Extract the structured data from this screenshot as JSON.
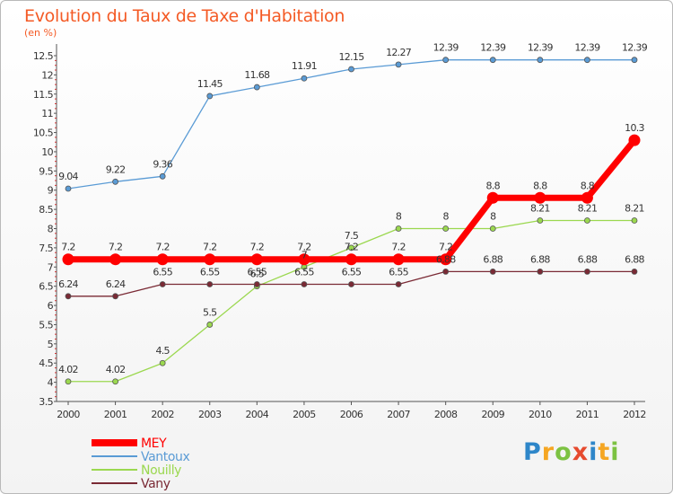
{
  "header": {
    "title": "Evolution du Taux de Taxe d'Habitation",
    "subtitle": "(en %)"
  },
  "logo": {
    "text": "Proxiti",
    "letters": [
      {
        "ch": "P",
        "color": "#2e86c9"
      },
      {
        "ch": "r",
        "color": "#f5a623"
      },
      {
        "ch": "o",
        "color": "#7cc242"
      },
      {
        "ch": "x",
        "color": "#e64a2e"
      },
      {
        "ch": "i",
        "color": "#2e86c9"
      },
      {
        "ch": "t",
        "color": "#f5a623"
      },
      {
        "ch": "i",
        "color": "#7cc242"
      }
    ]
  },
  "chart_data": {
    "type": "line",
    "x": [
      "2000",
      "2001",
      "2002",
      "2003",
      "2004",
      "2005",
      "2006",
      "2007",
      "2008",
      "2009",
      "2010",
      "2011",
      "2012"
    ],
    "ylim": [
      3.5,
      12.5
    ],
    "yticks": [
      "3.5",
      "4",
      "4.5",
      "5",
      "5.5",
      "6",
      "6.5",
      "7",
      "7.5",
      "8",
      "8.5",
      "9",
      "9.5",
      "10",
      "10.5",
      "11",
      "11.5",
      "12",
      "12.5"
    ],
    "grid": false,
    "legend_position": "bottom-left",
    "series": [
      {
        "name": "MEY",
        "color": "#ff0000",
        "values": [
          7.2,
          7.2,
          7.2,
          7.2,
          7.2,
          7.2,
          7.2,
          7.2,
          7.2,
          8.8,
          8.8,
          8.8,
          10.3
        ],
        "labels": [
          "7.2",
          "7.2",
          "7.2",
          "7.2",
          "7.2",
          "7.2",
          "7.2",
          "7.2",
          "7.2",
          "8.8",
          "8.8",
          "8.8",
          "10.3"
        ]
      },
      {
        "name": "Vantoux",
        "color": "#5a9bd5",
        "values": [
          9.04,
          9.22,
          9.36,
          11.45,
          11.68,
          11.91,
          12.15,
          12.27,
          12.39,
          12.39,
          12.39,
          12.39,
          12.39
        ],
        "labels": [
          "9.04",
          "9.22",
          "9.36",
          "11.45",
          "11.68",
          "11.91",
          "12.15",
          "12.27",
          "12.39",
          "12.39",
          "12.39",
          "12.39",
          "12.39"
        ]
      },
      {
        "name": "Nouilly",
        "color": "#9bd84f",
        "values": [
          4.02,
          4.02,
          4.5,
          5.5,
          6.5,
          7,
          7.5,
          8,
          8,
          8,
          8.21,
          8.21,
          8.21
        ],
        "labels": [
          "4.02",
          "4.02",
          "4.5",
          "5.5",
          "6.5",
          "7",
          "7.5",
          "8",
          "8",
          "8",
          "8.21",
          "8.21",
          "8.21"
        ]
      },
      {
        "name": "Vany",
        "color": "#7a2a35",
        "values": [
          6.24,
          6.24,
          6.55,
          6.55,
          6.55,
          6.55,
          6.55,
          6.55,
          6.88,
          6.88,
          6.88,
          6.88,
          6.88
        ],
        "labels": [
          "6.24",
          "6.24",
          "6.55",
          "6.55",
          "6.55",
          "6.55",
          "6.55",
          "6.55",
          "6.88",
          "6.88",
          "6.88",
          "6.88",
          "6.88"
        ]
      }
    ]
  }
}
